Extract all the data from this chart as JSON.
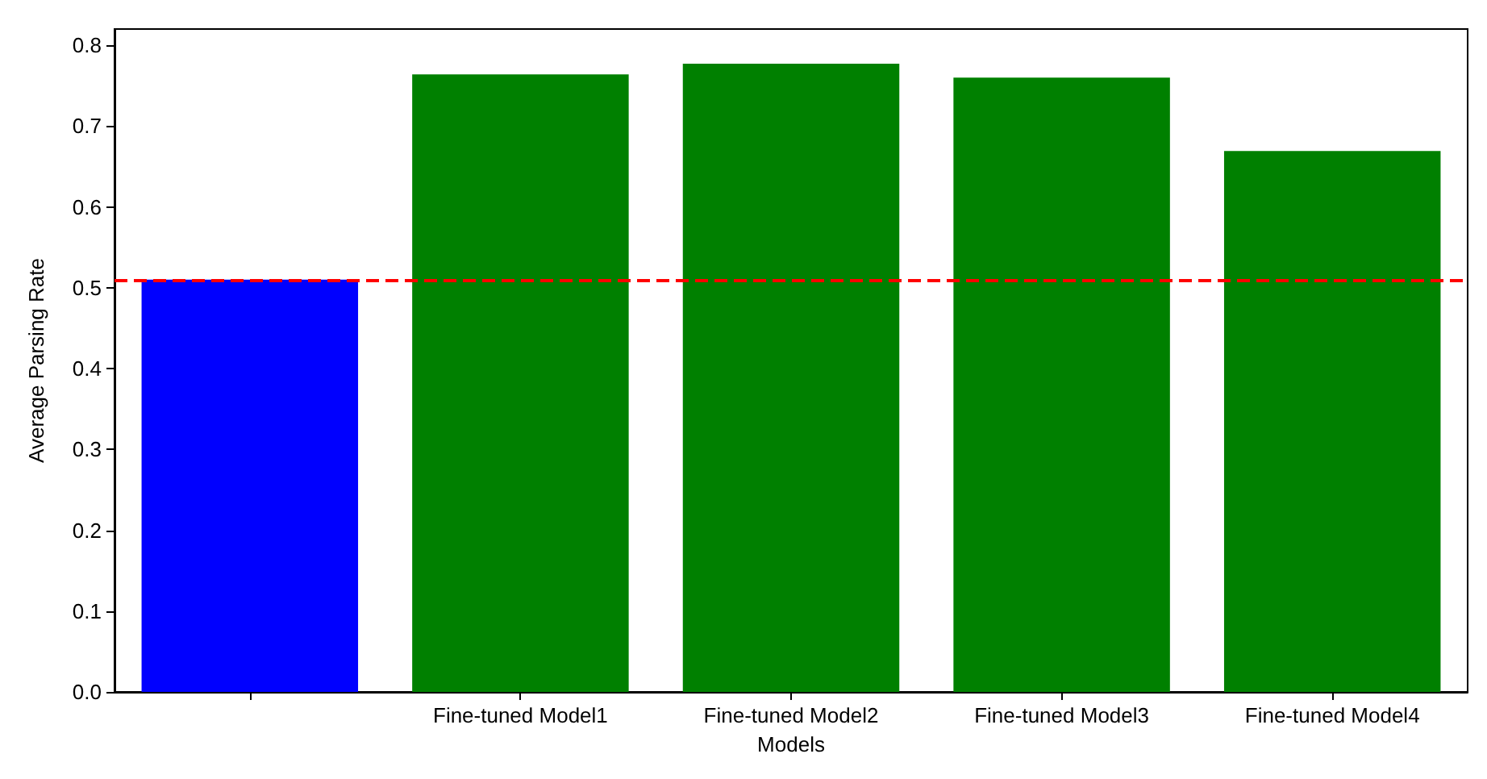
{
  "chart_data": {
    "type": "bar",
    "xlabel": "Models",
    "ylabel": "Average Parsing Rate",
    "categories": [
      null,
      "Fine-tuned Model1",
      "Fine-tuned Model2",
      "Fine-tuned Model3",
      "Fine-tuned Model4"
    ],
    "values": [
      0.51,
      0.764,
      0.777,
      0.76,
      0.669
    ],
    "colors": [
      "#0000ff",
      "#008000",
      "#008000",
      "#008000",
      "#008000"
    ],
    "ylim": [
      0,
      0.82
    ],
    "yticks": [
      {
        "value": 0,
        "label": "0.0"
      },
      {
        "value": 0.1,
        "label": "0.1"
      },
      {
        "value": 0.2,
        "label": "0.2"
      },
      {
        "value": 0.3,
        "label": "0.3"
      },
      {
        "value": 0.4,
        "label": "0.4"
      },
      {
        "value": 0.5,
        "label": "0.5"
      },
      {
        "value": 0.6,
        "label": "0.6"
      },
      {
        "value": 0.7,
        "label": "0.7"
      },
      {
        "value": 0.8,
        "label": "0.8"
      }
    ],
    "ref_lines": [
      {
        "axis": "y",
        "value": 0.51,
        "color": "#ff0000",
        "line_style": "dashed"
      }
    ],
    "grid": false
  }
}
